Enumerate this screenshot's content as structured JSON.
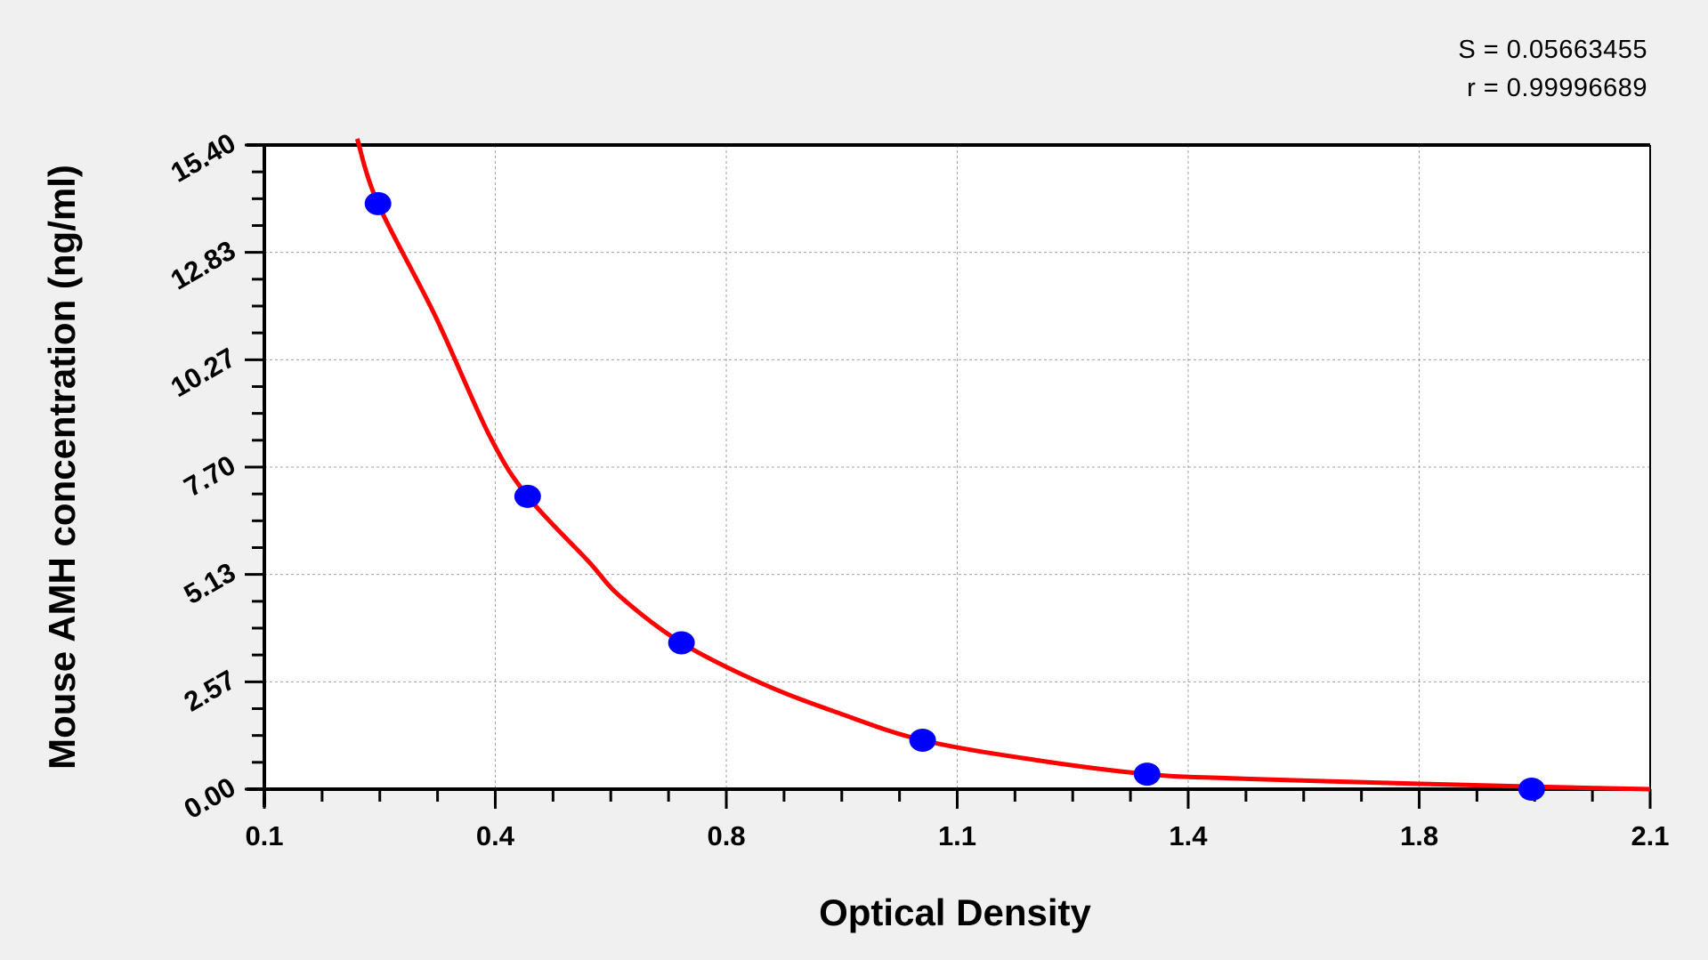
{
  "chart_data": {
    "type": "scatter",
    "title": "",
    "xlabel": "Optical Density",
    "ylabel": "Mouse AMH concentration (ng/ml)",
    "xlim": [
      0.1,
      2.1
    ],
    "ylim": [
      0,
      15.4
    ],
    "x_ticks": [
      0.1,
      0.4333,
      0.7667,
      1.1,
      1.4333,
      1.7667,
      2.1
    ],
    "x_tick_labels": [
      "0.1",
      "0.4",
      "0.8",
      "1.1",
      "1.4",
      "1.8",
      "2.1"
    ],
    "y_ticks": [
      0,
      2.567,
      5.133,
      7.7,
      10.267,
      12.833,
      15.4
    ],
    "y_tick_labels": [
      "0.00",
      "2.57",
      "5.13",
      "7.70",
      "10.27",
      "12.83",
      "15.40"
    ],
    "grid": true,
    "annotations": [
      "S = 0.05663455",
      "r = 0.99996689"
    ],
    "series": [
      {
        "type": "scatter",
        "color": "#0000ff",
        "x": [
          0.264,
          0.48,
          0.702,
          1.05,
          1.374,
          1.929
        ],
        "y": [
          14.0,
          7.0,
          3.5,
          1.17,
          0.36,
          0.0
        ]
      },
      {
        "type": "line",
        "color": "#ff0000",
        "x": [
          0.234,
          0.264,
          0.347,
          0.425,
          0.48,
          0.567,
          0.614,
          0.702,
          0.819,
          0.929,
          1.05,
          1.212,
          1.374,
          1.495,
          1.762,
          1.929,
          2.013,
          2.1
        ],
        "y": [
          15.55,
          14.0,
          11.3,
          8.45,
          7.0,
          5.46,
          4.6,
          3.5,
          2.52,
          1.82,
          1.17,
          0.7,
          0.36,
          0.26,
          0.13,
          0.06,
          0.03,
          0.0
        ]
      }
    ]
  }
}
